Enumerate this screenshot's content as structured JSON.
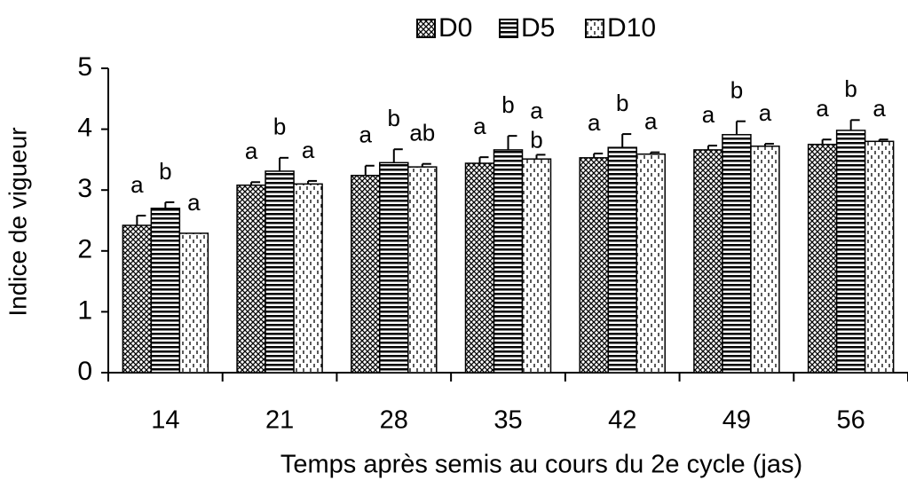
{
  "chart_data": {
    "type": "bar",
    "ylabel": "Indice de vigueur",
    "xlabel": "Temps après semis au cours du 2e cycle (jas)",
    "categories": [
      "14",
      "21",
      "28",
      "35",
      "42",
      "49",
      "56"
    ],
    "ylim": [
      0,
      5
    ],
    "yticks": [
      0,
      1,
      2,
      3,
      4,
      5
    ],
    "legend": "top",
    "series": [
      {
        "name": "D0",
        "color": "#000000",
        "pattern": "crosshatch",
        "values": [
          2.42,
          3.08,
          3.24,
          3.44,
          3.53,
          3.66,
          3.75
        ],
        "errors": [
          0.16,
          0.05,
          0.16,
          0.1,
          0.07,
          0.07,
          0.08
        ],
        "letters": [
          "a",
          "a",
          "a",
          "a",
          "a",
          "a",
          "a"
        ]
      },
      {
        "name": "D5",
        "color": "#000000",
        "pattern": "horizontal",
        "values": [
          2.7,
          3.31,
          3.45,
          3.66,
          3.7,
          3.91,
          3.98
        ],
        "errors": [
          0.1,
          0.22,
          0.22,
          0.23,
          0.22,
          0.22,
          0.17
        ],
        "letters": [
          "b",
          "b",
          "b",
          "b",
          "b",
          "b",
          "b"
        ]
      },
      {
        "name": "D10",
        "color": "#000000",
        "pattern": "dashed",
        "values": [
          2.29,
          3.1,
          3.38,
          3.51,
          3.59,
          3.72,
          3.8
        ],
        "errors": [
          0,
          0.05,
          0.05,
          0.07,
          0.03,
          0.04,
          0.03
        ],
        "letters": [
          "a",
          "a",
          "ab",
          [
            "a",
            "b"
          ],
          "a",
          "a",
          "a"
        ]
      }
    ]
  }
}
